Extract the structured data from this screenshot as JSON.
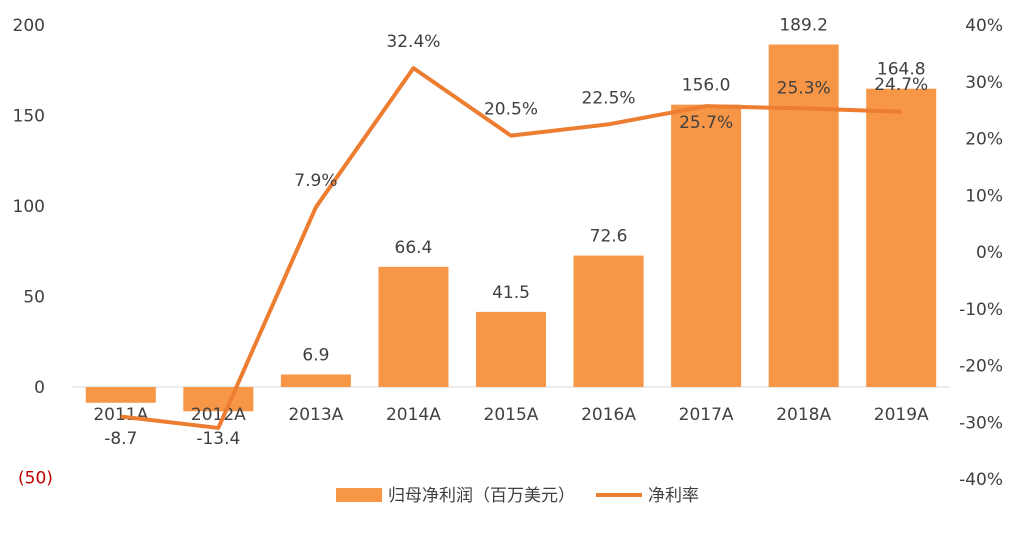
{
  "chart_data": {
    "type": "bar+line",
    "categories": [
      "2011A",
      "2012A",
      "2013A",
      "2014A",
      "2015A",
      "2016A",
      "2017A",
      "2018A",
      "2019A"
    ],
    "series": [
      {
        "name": "归母净利润（百万美元）",
        "type": "bar",
        "axis": "left",
        "color": "#F79646",
        "values": [
          -8.7,
          -13.4,
          6.9,
          66.4,
          41.5,
          72.6,
          156.0,
          189.2,
          164.8
        ],
        "labels": [
          "-8.7",
          "-13.4",
          "6.9",
          "66.4",
          "41.5",
          "72.6",
          "156.0",
          "189.2",
          "164.8"
        ]
      },
      {
        "name": "净利率",
        "type": "line",
        "axis": "right",
        "color": "#ED7D31",
        "values": [
          -0.29,
          -0.31,
          0.079,
          0.324,
          0.205,
          0.225,
          0.257,
          0.253,
          0.247
        ],
        "labels": [
          "",
          "",
          "7.9%",
          "32.4%",
          "20.5%",
          "22.5%",
          "25.7%",
          "25.3%",
          "24.7%"
        ]
      }
    ],
    "y_left": {
      "range": [
        -50,
        200
      ],
      "ticks": [
        -50,
        0,
        50,
        100,
        150,
        200
      ],
      "tick_labels": [
        "(50)",
        "0",
        "50",
        "100",
        "150",
        "200"
      ]
    },
    "y_right": {
      "range": [
        -0.4,
        0.4
      ],
      "ticks": [
        -0.4,
        -0.3,
        -0.2,
        -0.1,
        0,
        0.1,
        0.2,
        0.3,
        0.4
      ],
      "tick_labels": [
        "-40%",
        "-30%",
        "-20%",
        "-10%",
        "0%",
        "10%",
        "20%",
        "30%",
        "40%"
      ]
    },
    "negative_tick_color": "#C00000",
    "grid": false,
    "legend": "bottom-center"
  }
}
